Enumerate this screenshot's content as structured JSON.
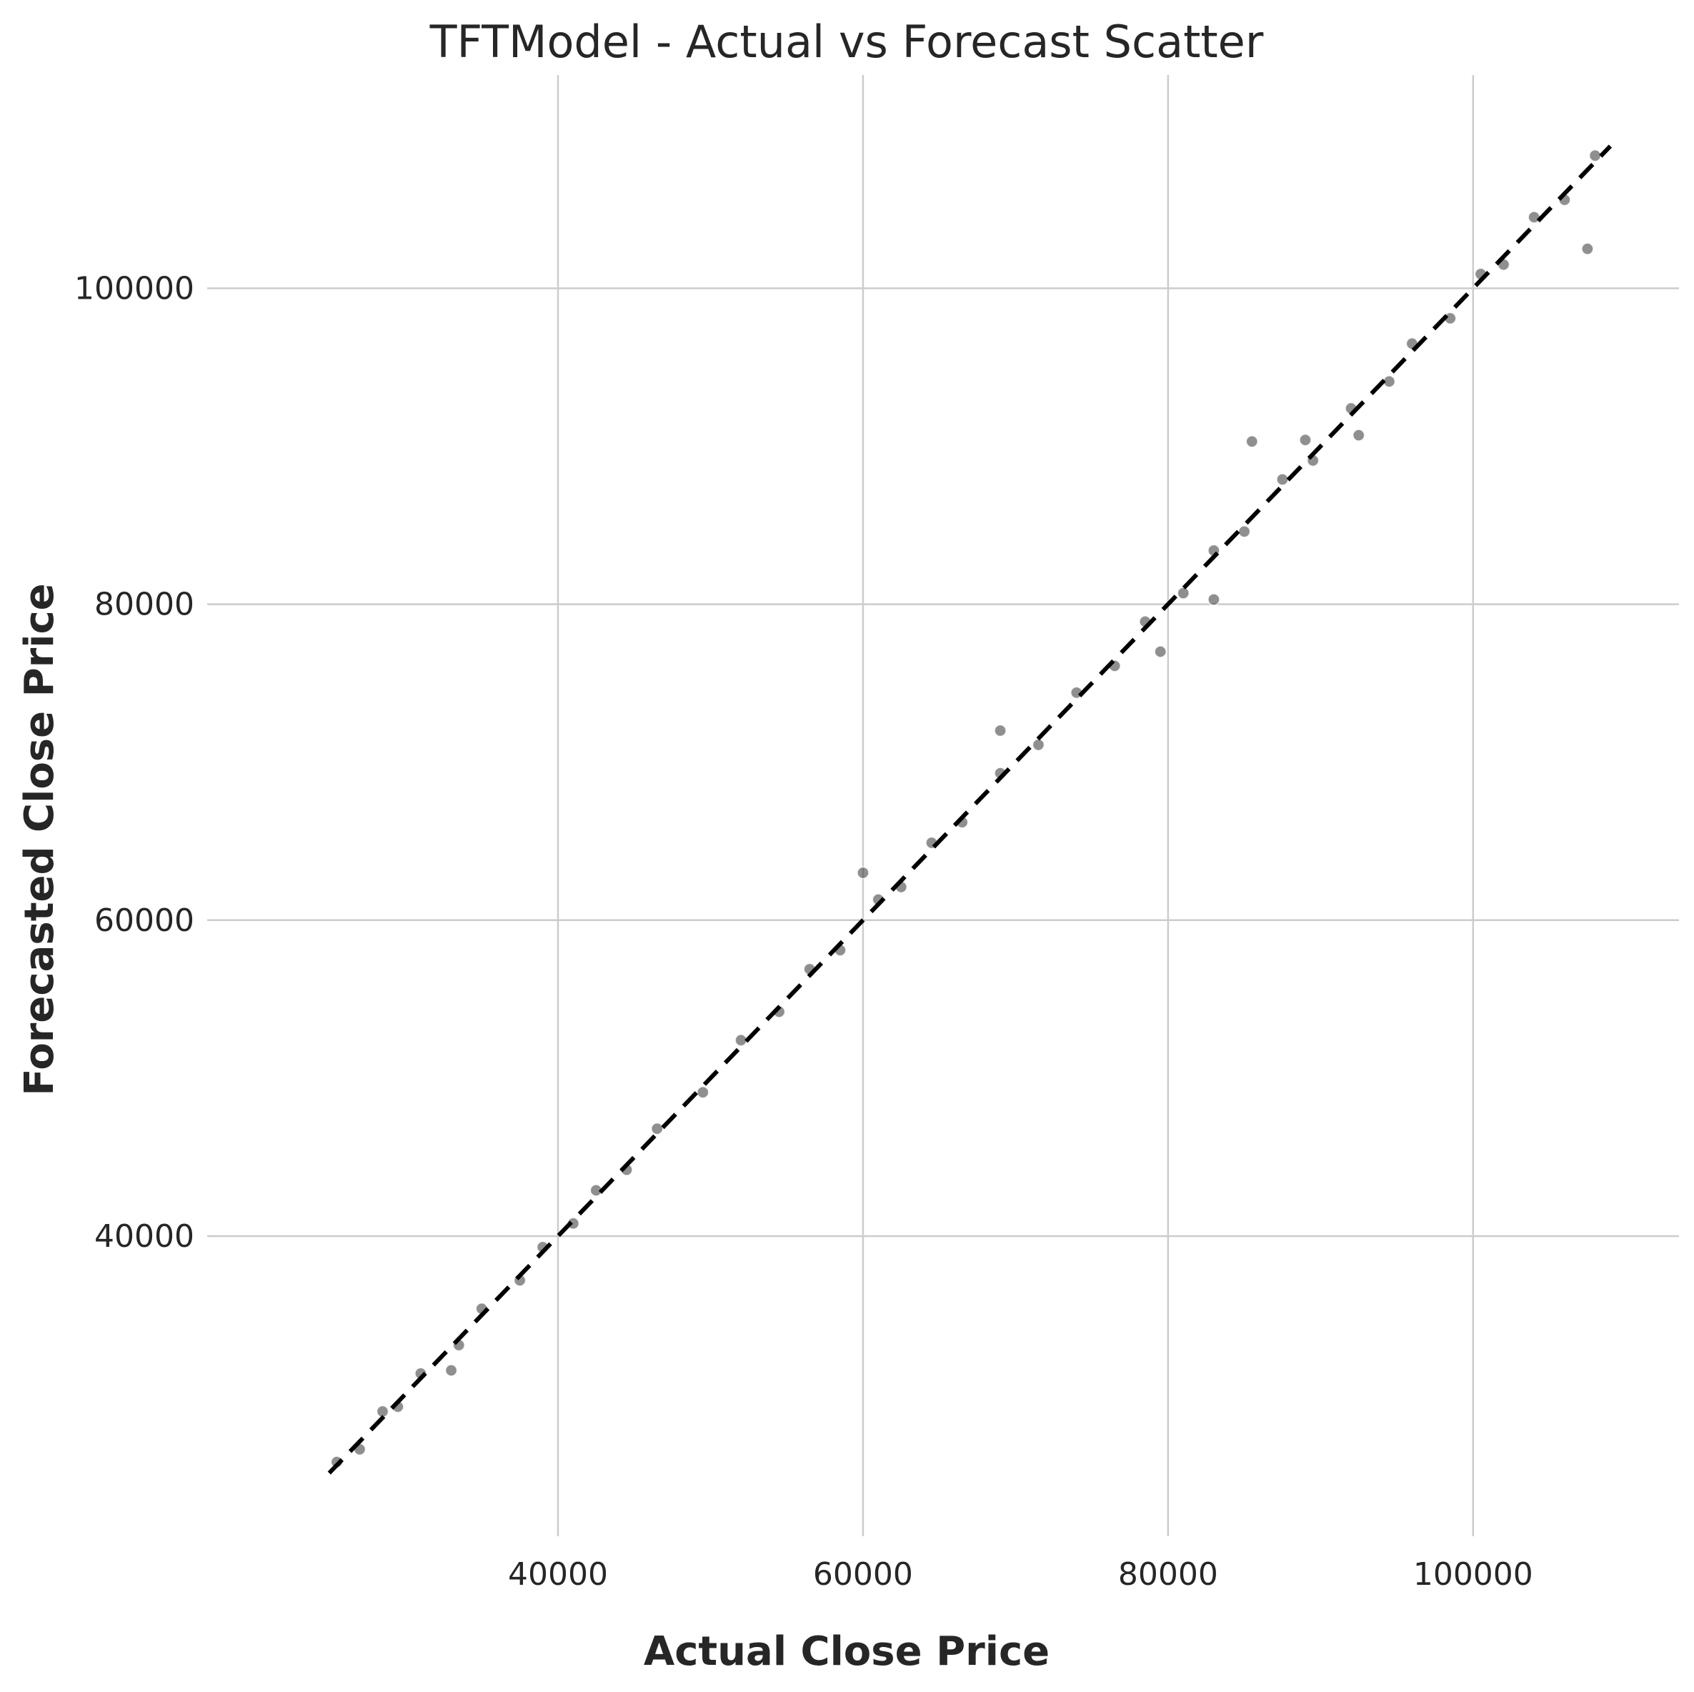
{
  "chart_data": {
    "type": "scatter",
    "title": "TFTModel - Actual vs Forecast Scatter",
    "xlabel": "Actual Close Price",
    "ylabel": "Forecasted Close Price",
    "xlim": [
      17000,
      113500
    ],
    "ylim": [
      21000,
      113500
    ],
    "xticks": [
      40000,
      60000,
      80000,
      100000
    ],
    "yticks": [
      40000,
      60000,
      80000,
      100000
    ],
    "xtick_labels": [
      "40000",
      "60000",
      "80000",
      "100000"
    ],
    "ytick_labels": [
      "40000",
      "60000",
      "80000",
      "100000"
    ],
    "grid": true,
    "reference_line": {
      "style": "dashed",
      "color": "#000000",
      "from": [
        25000,
        25000
      ],
      "to": [
        109000,
        109000
      ]
    },
    "points": {
      "color": "#333333",
      "edge_color": "#ffffff",
      "opacity": 0.55,
      "x": [
        25500,
        27000,
        28500,
        29500,
        31000,
        33500,
        35000,
        37500,
        39000,
        41000,
        42500,
        44500,
        46500,
        49500,
        52000,
        54500,
        56500,
        58500,
        61000,
        62500,
        64500,
        66500,
        69000,
        71500,
        74000,
        76500,
        78500,
        81000,
        83000,
        85000,
        87500,
        89500,
        92000,
        94500,
        96000,
        98500,
        100500,
        102000,
        104000,
        106000,
        108000,
        85500,
        89000,
        92500,
        79500,
        83000,
        107500,
        33000,
        60000,
        69000
      ],
      "y": [
        25700,
        26500,
        28900,
        29200,
        31300,
        33100,
        35400,
        37200,
        39300,
        40800,
        42900,
        44200,
        46800,
        49100,
        52400,
        54200,
        56900,
        58100,
        61300,
        62100,
        64900,
        66200,
        69300,
        71100,
        74400,
        76100,
        78900,
        80700,
        83400,
        84600,
        87900,
        89100,
        92400,
        94100,
        96500,
        98100,
        100900,
        101500,
        104500,
        105600,
        108400,
        90300,
        90400,
        90700,
        77000,
        80300,
        102500,
        31500,
        63000,
        72000
      ]
    }
  }
}
